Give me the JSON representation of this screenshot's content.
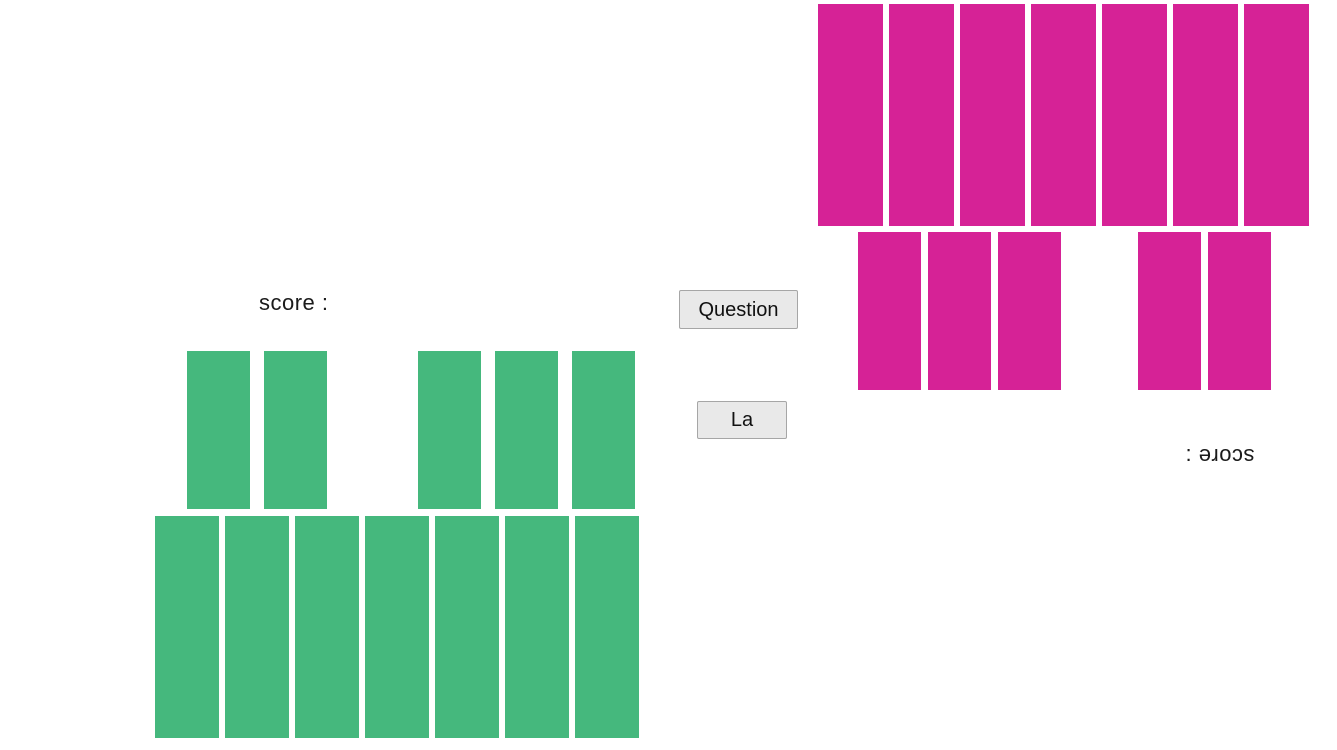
{
  "opponent": {
    "score_label": "score :",
    "card_color": "#d62296",
    "hand_slots": [
      1,
      1,
      1,
      1,
      1,
      1,
      1
    ],
    "played_slots": [
      1,
      1,
      1,
      0,
      1,
      1
    ]
  },
  "player": {
    "score_label": "score :",
    "card_color": "#45b87d",
    "played_slots": [
      1,
      1,
      0,
      1,
      1,
      1
    ],
    "hand_slots": [
      1,
      1,
      1,
      1,
      1,
      1,
      1
    ]
  },
  "buttons": {
    "question": "Question",
    "la": "La"
  },
  "colors": {
    "background": "#ffffff",
    "button_bg": "#e9e9e9",
    "button_border": "#a6a6a6",
    "text": "#1b1b1b"
  }
}
